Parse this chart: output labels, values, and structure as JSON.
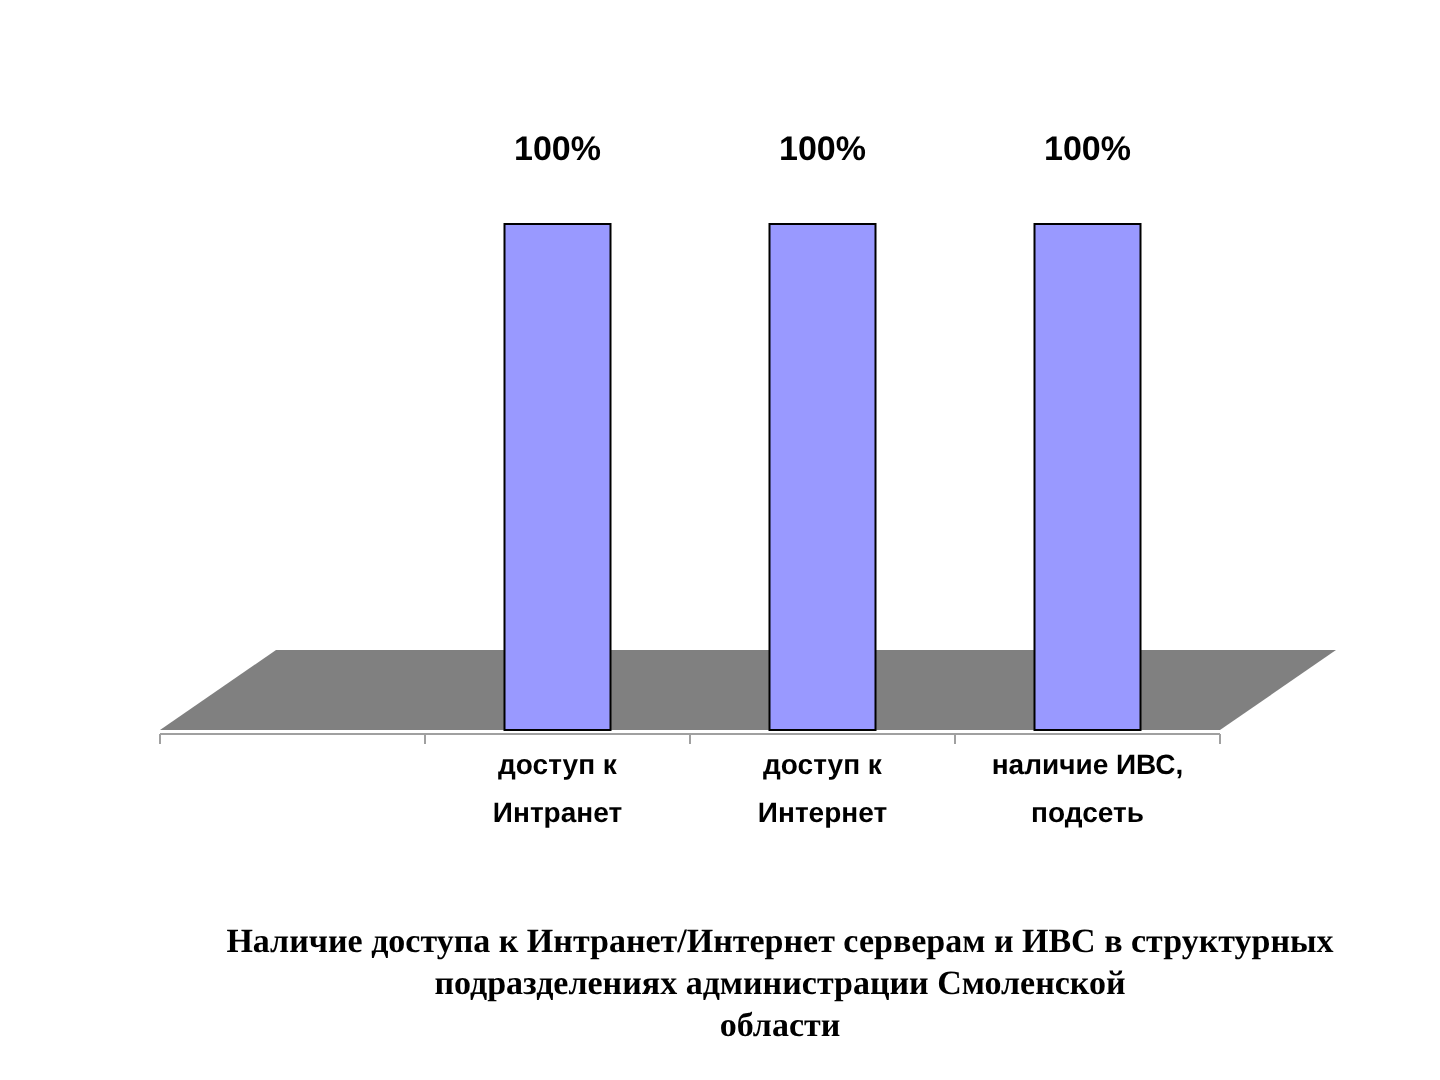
{
  "chart_data": {
    "type": "bar",
    "title": "Наличие доступа к Интранет/Интернет серверам и ИВС в структурных\nподразделениях администрации Смоленской\nобласти",
    "categories": [
      null,
      "доступ к Интранет",
      "доступ к Интернет",
      "наличие ИВС, подсеть"
    ],
    "values": [
      null,
      100,
      100,
      100
    ],
    "color": "#9999ff",
    "value_labels": [
      null,
      "100%",
      "100%",
      "100%"
    ]
  }
}
